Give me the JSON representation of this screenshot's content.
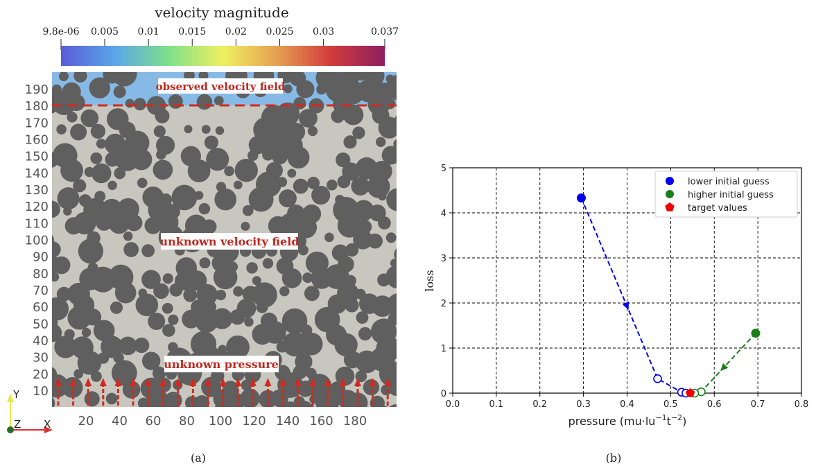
{
  "panel_a": {
    "caption": "(a)",
    "colorbar": {
      "title": "velocity magnitude",
      "ticks": [
        "9.8e-06",
        "0.005",
        "0.01",
        "0.015",
        "0.02",
        "0.025",
        "0.03",
        "0.037"
      ],
      "tick_values": [
        9.8e-06,
        0.005,
        0.01,
        0.015,
        0.02,
        0.025,
        0.03,
        0.037
      ],
      "range": [
        9.8e-06,
        0.037
      ],
      "colormap_stops": [
        "#5b5bd8",
        "#5aa6e8",
        "#7fe08a",
        "#eef060",
        "#e6a052",
        "#d23c3c",
        "#8c1f5e"
      ]
    },
    "labels": {
      "observed": "observed velocity field",
      "unknown_velocity": "unknown velocity field",
      "unknown_pressure": "unknown pressure"
    },
    "y_ticks": [
      "10",
      "20",
      "30",
      "40",
      "50",
      "60",
      "70",
      "80",
      "90",
      "100",
      "110",
      "120",
      "130",
      "140",
      "150",
      "160",
      "170",
      "180",
      "190"
    ],
    "x_ticks": [
      "20",
      "40",
      "60",
      "80",
      "100",
      "120",
      "140",
      "160",
      "180"
    ],
    "axes_widget": {
      "y": "Y",
      "z": "Z",
      "x": "X"
    },
    "colors": {
      "solid": "#5f5f5f",
      "pore": "#c8c7bf",
      "marker": "#d12a1e"
    }
  },
  "chart_data": {
    "type": "scatter",
    "caption": "(b)",
    "xlabel": "pressure (mu·lu",
    "xlabel_sup1": "−1",
    "xlabel_mid": "t",
    "xlabel_sup2": "−2",
    "xlabel_end": ")",
    "ylabel": "loss",
    "xlim": [
      0.0,
      0.8
    ],
    "ylim": [
      0,
      5
    ],
    "x_ticks": [
      0.0,
      0.1,
      0.2,
      0.3,
      0.4,
      0.5,
      0.6,
      0.7,
      0.8
    ],
    "x_tick_labels": [
      "0.0",
      "0.1",
      "0.2",
      "0.3",
      "0.4",
      "0.5",
      "0.6",
      "0.7",
      "0.8"
    ],
    "y_ticks": [
      0,
      1,
      2,
      3,
      4,
      5
    ],
    "y_tick_labels": [
      "0",
      "1",
      "2",
      "3",
      "4",
      "5"
    ],
    "grid": true,
    "legend_position": "top-right",
    "series": [
      {
        "name": "lower initial guess",
        "color": "#0000ee",
        "marker": "circle",
        "x": [
          0.295,
          0.47,
          0.525,
          0.535
        ],
        "y": [
          4.33,
          0.32,
          0.02,
          0.0
        ]
      },
      {
        "name": "higher initial guess",
        "color": "#1a7f1a",
        "marker": "circle",
        "x": [
          0.695,
          0.57,
          0.555
        ],
        "y": [
          1.33,
          0.03,
          0.0
        ]
      },
      {
        "name": "target values",
        "color": "#ee0000",
        "marker": "pentagon",
        "x": [
          0.545
        ],
        "y": [
          0.0
        ]
      }
    ]
  }
}
